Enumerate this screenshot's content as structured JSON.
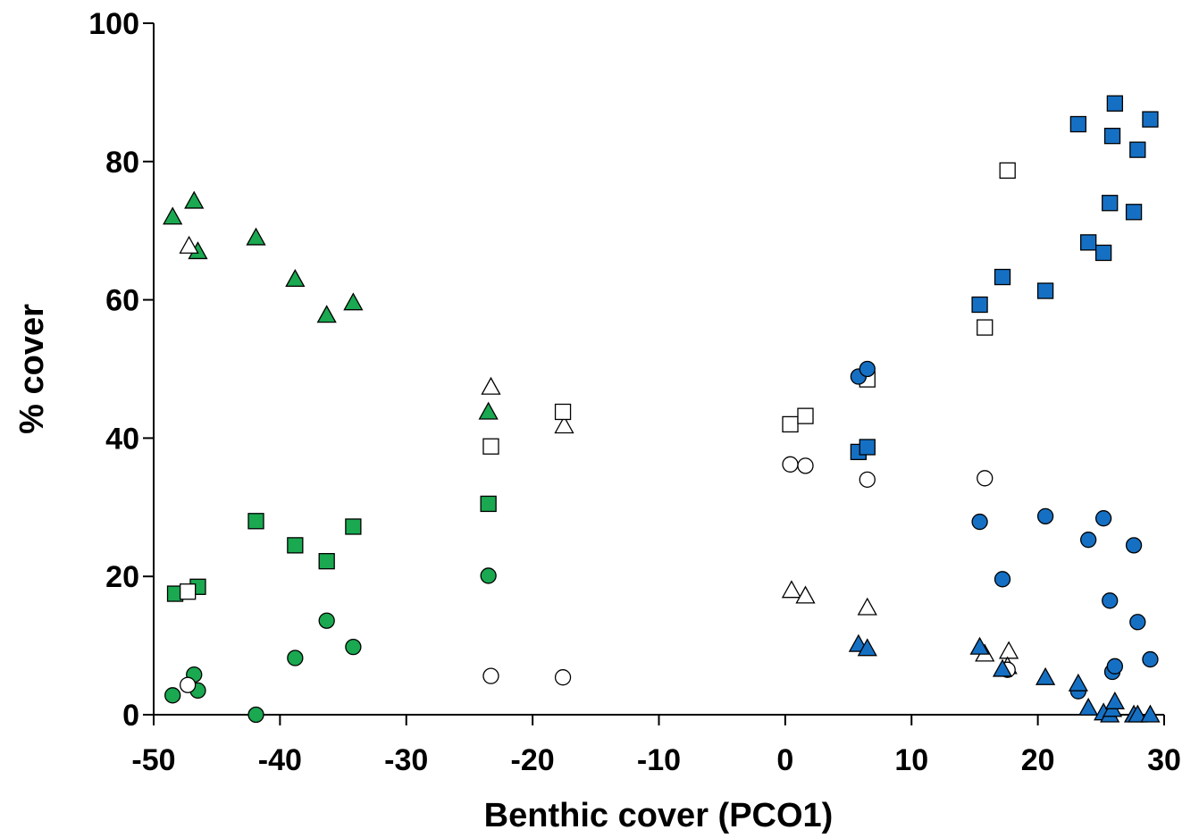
{
  "chart_data": {
    "type": "scatter",
    "title": "",
    "xlabel": "Benthic cover (PCO1)",
    "ylabel": "% cover",
    "xlim": [
      -50,
      30
    ],
    "ylim": [
      0,
      100
    ],
    "x_ticks": [
      "-50",
      "-40",
      "-30",
      "-20",
      "-10",
      "0",
      "10",
      "20",
      "30"
    ],
    "y_ticks": [
      "0",
      "20",
      "40",
      "60",
      "80",
      "100"
    ],
    "grid": false,
    "legend": "none",
    "colors": {
      "green": "#1aa850",
      "blue": "#1570c4",
      "open": "#ffffff",
      "stroke": "#000000"
    },
    "series": [
      {
        "marker": "triangle",
        "fill": "green",
        "points": [
          [
            -48.5,
            72
          ],
          [
            -46.8,
            74.3
          ],
          [
            -46.5,
            67
          ],
          [
            -41.9,
            69
          ],
          [
            -38.8,
            63
          ],
          [
            -36.3,
            57.8
          ],
          [
            -34.2,
            59.6
          ],
          [
            -23.5,
            43.8
          ]
        ]
      },
      {
        "marker": "triangle",
        "fill": "open",
        "points": [
          [
            -47.2,
            67.8
          ],
          [
            -23.3,
            47.4
          ],
          [
            -17.5,
            41.8
          ],
          [
            0.5,
            18
          ],
          [
            1.6,
            17.2
          ],
          [
            6.5,
            15.5
          ],
          [
            15.8,
            8.8
          ],
          [
            17.7,
            9.2
          ],
          [
            17.6,
            7
          ]
        ]
      },
      {
        "marker": "square",
        "fill": "green",
        "points": [
          [
            -48.3,
            17.5
          ],
          [
            -46.5,
            18.5
          ],
          [
            -41.9,
            28
          ],
          [
            -38.8,
            24.5
          ],
          [
            -36.3,
            22.2
          ],
          [
            -34.2,
            27.2
          ],
          [
            -23.5,
            30.5
          ]
        ]
      },
      {
        "marker": "square",
        "fill": "open",
        "points": [
          [
            -47.3,
            17.8
          ],
          [
            -23.3,
            38.8
          ],
          [
            -17.6,
            43.8
          ],
          [
            0.4,
            42
          ],
          [
            1.6,
            43.2
          ],
          [
            6.5,
            48.5
          ],
          [
            15.8,
            56
          ],
          [
            17.6,
            78.7
          ]
        ]
      },
      {
        "marker": "circle",
        "fill": "green",
        "points": [
          [
            -48.5,
            2.8
          ],
          [
            -46.8,
            5.8
          ],
          [
            -46.5,
            3.5
          ],
          [
            -41.9,
            0
          ],
          [
            -38.8,
            8.2
          ],
          [
            -36.3,
            13.6
          ],
          [
            -34.2,
            9.8
          ],
          [
            -23.5,
            20.1
          ]
        ]
      },
      {
        "marker": "circle",
        "fill": "open",
        "points": [
          [
            -47.3,
            4.3
          ],
          [
            -23.3,
            5.6
          ],
          [
            -17.6,
            5.4
          ],
          [
            0.4,
            36.2
          ],
          [
            1.6,
            36
          ],
          [
            6.5,
            34
          ],
          [
            15.8,
            34.2
          ],
          [
            17.6,
            6.5
          ]
        ]
      },
      {
        "marker": "square",
        "fill": "blue",
        "points": [
          [
            5.8,
            38
          ],
          [
            6.5,
            38.7
          ],
          [
            15.4,
            59.3
          ],
          [
            17.2,
            63.3
          ],
          [
            20.6,
            61.3
          ],
          [
            23.2,
            85.4
          ],
          [
            24.0,
            68.3
          ],
          [
            25.2,
            66.8
          ],
          [
            25.7,
            74
          ],
          [
            25.9,
            83.7
          ],
          [
            26.1,
            88.4
          ],
          [
            27.6,
            72.7
          ],
          [
            27.9,
            81.7
          ],
          [
            28.9,
            86.1
          ]
        ]
      },
      {
        "marker": "circle",
        "fill": "blue",
        "points": [
          [
            5.8,
            48.9
          ],
          [
            6.5,
            50
          ],
          [
            15.4,
            27.9
          ],
          [
            17.2,
            19.6
          ],
          [
            20.6,
            28.7
          ],
          [
            23.2,
            3.4
          ],
          [
            24.0,
            25.3
          ],
          [
            25.2,
            28.4
          ],
          [
            25.7,
            16.5
          ],
          [
            25.9,
            6.2
          ],
          [
            26.1,
            7
          ],
          [
            27.6,
            24.5
          ],
          [
            27.9,
            13.4
          ],
          [
            28.9,
            8
          ]
        ]
      },
      {
        "marker": "triangle",
        "fill": "blue",
        "points": [
          [
            5.8,
            10.2
          ],
          [
            6.5,
            9.6
          ],
          [
            15.4,
            9.8
          ],
          [
            17.2,
            6.6
          ],
          [
            20.6,
            5.4
          ],
          [
            23.2,
            4.5
          ],
          [
            24.0,
            1
          ],
          [
            25.2,
            0.3
          ],
          [
            25.7,
            0
          ],
          [
            25.9,
            0.8
          ],
          [
            26.1,
            1.9
          ],
          [
            27.6,
            0
          ],
          [
            27.9,
            0
          ],
          [
            28.9,
            0
          ]
        ]
      }
    ]
  }
}
